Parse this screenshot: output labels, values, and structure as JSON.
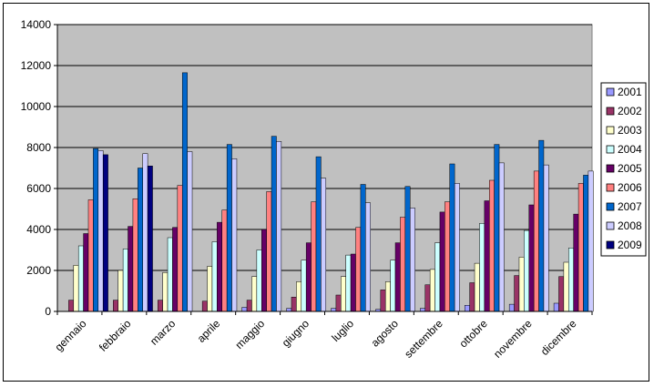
{
  "chart_data": {
    "type": "bar",
    "categories": [
      "gennaio",
      "febbraio",
      "marzo",
      "aprile",
      "maggio",
      "giugno",
      "luglio",
      "agosto",
      "settembre",
      "ottobre",
      "novembre",
      "dicembre"
    ],
    "ylim": [
      0,
      14000
    ],
    "yticks": [
      0,
      2000,
      4000,
      6000,
      8000,
      10000,
      12000,
      14000
    ],
    "ytick_labels": [
      "0",
      "2000",
      "4000",
      "6000",
      "8000",
      "10000",
      "12000",
      "14000"
    ],
    "grid": true,
    "legend_position": "right",
    "plot_background": "#C0C0C0",
    "series": [
      {
        "name": "2001",
        "color": "#9999FF",
        "values": [
          0,
          0,
          0,
          0,
          200,
          150,
          150,
          100,
          150,
          300,
          350,
          400
        ]
      },
      {
        "name": "2002",
        "color": "#993366",
        "values": [
          550,
          550,
          550,
          500,
          550,
          700,
          800,
          1050,
          1300,
          1400,
          1750,
          1700
        ]
      },
      {
        "name": "2003",
        "color": "#FFFFCC",
        "values": [
          2250,
          2000,
          1900,
          2200,
          1700,
          1450,
          1700,
          1450,
          2050,
          2350,
          2650,
          2400
        ]
      },
      {
        "name": "2004",
        "color": "#CCFFFF",
        "values": [
          3200,
          3050,
          3600,
          3400,
          3000,
          2500,
          2750,
          2500,
          3350,
          4300,
          3950,
          3100
        ]
      },
      {
        "name": "2005",
        "color": "#660066",
        "values": [
          3800,
          4150,
          4100,
          4350,
          4000,
          3350,
          2800,
          3350,
          4850,
          5400,
          5200,
          4750
        ]
      },
      {
        "name": "2006",
        "color": "#FF8080",
        "values": [
          5450,
          5500,
          6150,
          4950,
          5850,
          5350,
          4100,
          4600,
          5350,
          6400,
          6850,
          6250
        ]
      },
      {
        "name": "2007",
        "color": "#0066CC",
        "values": [
          7950,
          7000,
          11650,
          8150,
          8550,
          7550,
          6200,
          6100,
          7200,
          8150,
          8350,
          6650
        ]
      },
      {
        "name": "2008",
        "color": "#CCCCFF",
        "values": [
          7850,
          7700,
          7800,
          7450,
          8300,
          6500,
          5300,
          5050,
          6250,
          7250,
          7150,
          6850
        ]
      },
      {
        "name": "2009",
        "color": "#000080",
        "values": [
          7650,
          7100,
          null,
          null,
          null,
          null,
          null,
          null,
          null,
          null,
          null,
          null
        ]
      }
    ]
  }
}
